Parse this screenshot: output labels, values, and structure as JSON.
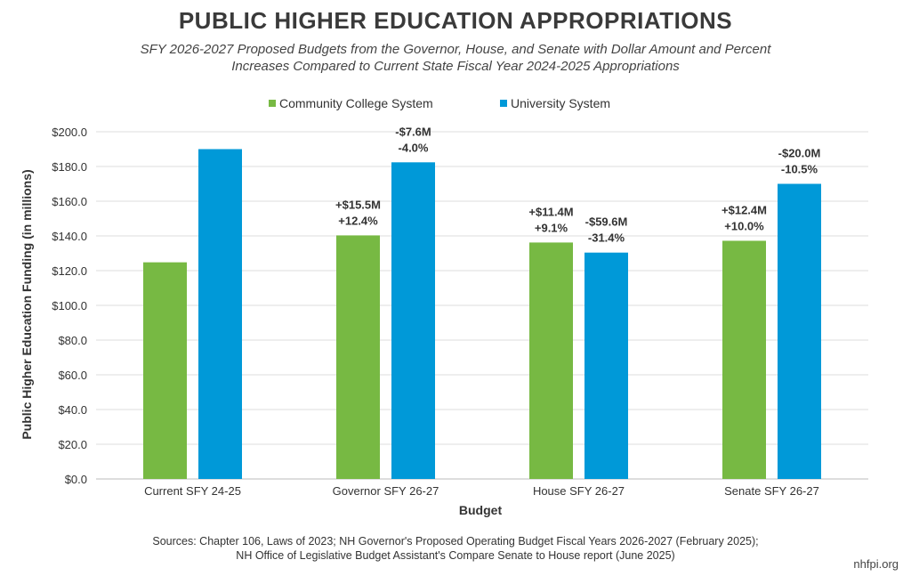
{
  "title": "PUBLIC HIGHER EDUCATION APPROPRIATIONS",
  "subtitle_line1": "SFY 2026-2027 Proposed Budgets from the Governor, House, and Senate with Dollar Amount and Percent",
  "subtitle_line2": "Increases Compared to Current State Fiscal Year 2024-2025 Appropriations",
  "colors": {
    "community": "#77b943",
    "university": "#0099d8",
    "grid": "#dddddd"
  },
  "sources_line1": "Sources: Chapter 106, Laws of 2023; NH Governor's Proposed Operating Budget Fiscal Years 2026-2027 (February 2025);",
  "sources_line2": "NH Office of Legislative Budget Assistant's Compare Senate to House report (June 2025)",
  "site": "nhfpi.org",
  "chart_data": {
    "type": "bar",
    "title": "PUBLIC HIGHER EDUCATION APPROPRIATIONS",
    "xlabel": "Budget",
    "ylabel": "Public Higher Education Funding (in millions)",
    "ylim": [
      0,
      200
    ],
    "yticks": [
      "$0.0",
      "$20.0",
      "$40.0",
      "$60.0",
      "$80.0",
      "$100.0",
      "$120.0",
      "$140.0",
      "$160.0",
      "$180.0",
      "$200.0"
    ],
    "grid": true,
    "legend_position": "top",
    "categories": [
      "Current SFY 24-25",
      "Governor SFY 26-27",
      "House SFY 26-27",
      "Senate SFY 26-27"
    ],
    "series": [
      {
        "name": "Community College System",
        "color": "#77b943",
        "values": [
          124.8,
          140.3,
          136.2,
          137.2
        ],
        "labels": [
          [],
          [
            "+$15.5M",
            "+12.4%"
          ],
          [
            "+$11.4M",
            "+9.1%"
          ],
          [
            "+$12.4M",
            "+10.0%"
          ]
        ]
      },
      {
        "name": "University System",
        "color": "#0099d8",
        "values": [
          190.0,
          182.4,
          130.4,
          170.0
        ],
        "labels": [
          [],
          [
            "-$7.6M",
            "-4.0%"
          ],
          [
            "-$59.6M",
            "-31.4%"
          ],
          [
            "-$20.0M",
            "-10.5%"
          ]
        ]
      }
    ]
  }
}
